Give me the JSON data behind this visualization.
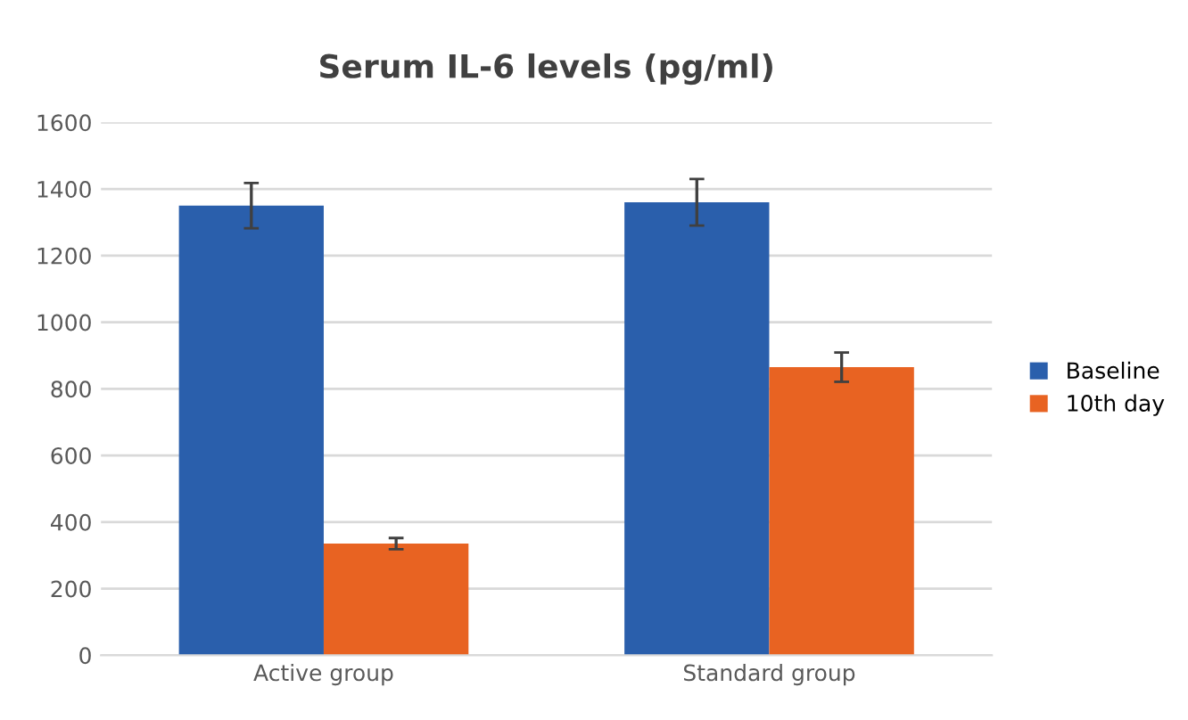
{
  "chart_data": {
    "type": "bar",
    "title": "Serum IL-6 levels (pg/ml)",
    "categories": [
      "Active group",
      "Standard group"
    ],
    "series": [
      {
        "name": "Baseline",
        "color": "#2a5fac",
        "values": [
          1350,
          1360
        ],
        "errors": [
          68,
          70
        ]
      },
      {
        "name": "10th day",
        "color": "#e86322",
        "values": [
          335,
          865
        ],
        "errors": [
          17,
          44
        ]
      }
    ],
    "ylim": [
      0,
      1600
    ],
    "yticks": [
      0,
      200,
      400,
      600,
      800,
      1000,
      1200,
      1400,
      1600
    ],
    "grid": "y",
    "legend": "right"
  }
}
